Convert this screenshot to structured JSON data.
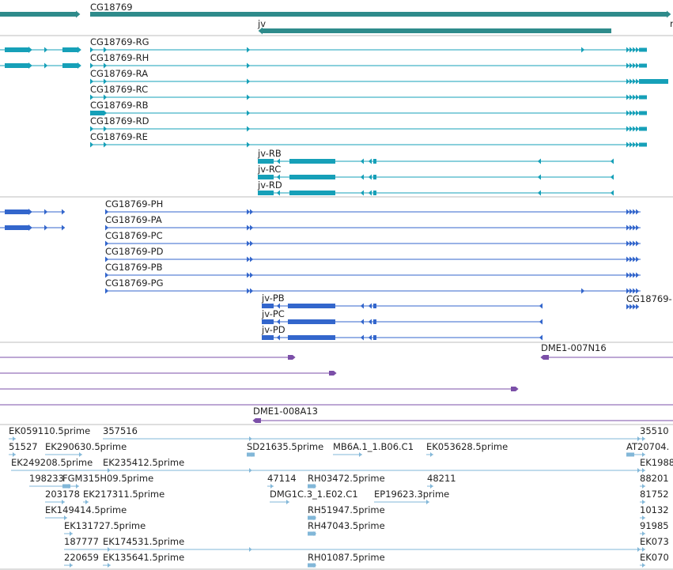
{
  "colors": {
    "gene": "#2e8b8b",
    "transcript": "#16a0b8",
    "protein": "#3366cc",
    "clone": "#7b4fa8",
    "est": "#82b7d8",
    "divider": "#bdbdbd"
  },
  "tracks": {
    "genes": {
      "icon": "gene-glyph",
      "items": [
        {
          "label": ""
        },
        {
          "label": "CG18769"
        },
        {
          "label": "jv"
        },
        {
          "label": "r"
        }
      ]
    },
    "transcripts": {
      "icon": "transcript-glyph",
      "items": [
        {
          "label": ""
        },
        {
          "label": ""
        },
        {
          "label": "CG18769-RG"
        },
        {
          "label": "CG18769-RH"
        },
        {
          "label": "CG18769-RA"
        },
        {
          "label": "CG18769-RC"
        },
        {
          "label": "CG18769-RB"
        },
        {
          "label": "CG18769-RD"
        },
        {
          "label": "CG18769-RE"
        },
        {
          "label": "jv-RB"
        },
        {
          "label": "jv-RC"
        },
        {
          "label": "jv-RD"
        }
      ]
    },
    "proteins": {
      "icon": "protein-glyph",
      "items": [
        {
          "label": ""
        },
        {
          "label": ""
        },
        {
          "label": "CG18769-PH"
        },
        {
          "label": "CG18769-PA"
        },
        {
          "label": "CG18769-PC"
        },
        {
          "label": "CG18769-PD"
        },
        {
          "label": "CG18769-PB"
        },
        {
          "label": "CG18769-PG"
        },
        {
          "label": "CG18769-"
        },
        {
          "label": "jv-PB"
        },
        {
          "label": "jv-PC"
        },
        {
          "label": "jv-PD"
        }
      ]
    },
    "clones": {
      "icon": "clone-glyph",
      "items": [
        {
          "label": ""
        },
        {
          "label": "DME1-007N16"
        },
        {
          "label": ""
        },
        {
          "label": ""
        },
        {
          "label": ""
        },
        {
          "label": "DME1-008A13"
        }
      ]
    },
    "ests": {
      "icon": "est-glyph",
      "items": [
        {
          "label": "EK059110.5prime"
        },
        {
          "label": "357516"
        },
        {
          "label": "35510"
        },
        {
          "label": "51527"
        },
        {
          "label": "EK290630.5prime"
        },
        {
          "label": "SD21635.5prime"
        },
        {
          "label": "MB6A.1_1.B06.C1"
        },
        {
          "label": "EK053628.5prime"
        },
        {
          "label": "AT20704."
        },
        {
          "label": "EK249208.5prime"
        },
        {
          "label": "EK235412.5prime"
        },
        {
          "label": "EK1988"
        },
        {
          "label": "198233"
        },
        {
          "label": "FGM315H09.5prime"
        },
        {
          "label": "47114"
        },
        {
          "label": "RH03472.5prime"
        },
        {
          "label": "48211"
        },
        {
          "label": "88201"
        },
        {
          "label": "203178"
        },
        {
          "label": "EK217311.5prime"
        },
        {
          "label": "DMG1C.3_1.E02.C1"
        },
        {
          "label": "EP19623.3prime"
        },
        {
          "label": "81752"
        },
        {
          "label": "EK149414.5prime"
        },
        {
          "label": "RH51947.5prime"
        },
        {
          "label": "10132"
        },
        {
          "label": "EK131727.5prime"
        },
        {
          "label": "RH47043.5prime"
        },
        {
          "label": "91985"
        },
        {
          "label": "187777"
        },
        {
          "label": "EK174531.5prime"
        },
        {
          "label": "EK073"
        },
        {
          "label": "220659"
        },
        {
          "label": "EK135641.5prime"
        },
        {
          "label": "RH01087.5prime"
        },
        {
          "label": "EK070"
        }
      ]
    }
  }
}
